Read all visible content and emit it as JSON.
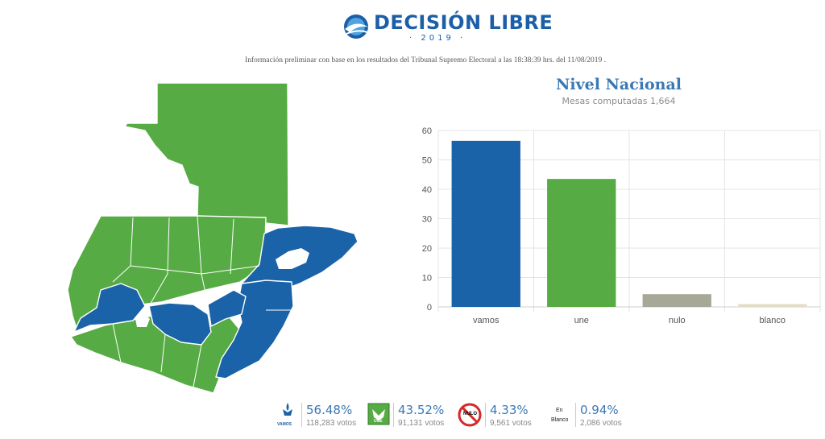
{
  "header": {
    "logo_text": "DECISIÓN LIBRE",
    "logo_year": "· 2019 ·",
    "disclaimer": "Información preliminar con base en los resultados del Tribunal Supremo Electoral a las 18:38:39 hrs. del 11/08/2019 ."
  },
  "map": {
    "region_colors": {
      "vamos": "#1a63a8",
      "une": "#57ab44"
    }
  },
  "summary": {
    "title": "Nivel Nacional",
    "subtitle": "Mesas computadas 1,664"
  },
  "chart_data": {
    "type": "bar",
    "title": "",
    "xlabel": "",
    "ylabel": "",
    "categories": [
      "vamos",
      "une",
      "nulo",
      "blanco"
    ],
    "values": [
      56.48,
      43.52,
      4.33,
      0.94
    ],
    "colors": [
      "#1a63a8",
      "#57ab44",
      "#a8a898",
      "#e3dcc6"
    ],
    "ylim": [
      0,
      60
    ],
    "yticks": [
      0,
      10,
      20,
      30,
      40,
      50,
      60
    ],
    "grid": true
  },
  "candidates": [
    {
      "id": "vamos",
      "logo_label": "VAMOS",
      "percent": "56.48%",
      "votes": "118,283 votos",
      "color": "#1a63a8"
    },
    {
      "id": "une",
      "logo_label": "UNE",
      "percent": "43.52%",
      "votes": "91,131 votos",
      "color": "#57ab44"
    },
    {
      "id": "nulo",
      "logo_label": "NULO",
      "percent": "4.33%",
      "votes": "9,561 votos",
      "color": "#d62828"
    },
    {
      "id": "blanco",
      "logo_label_top": "En",
      "logo_label_bottom": "Blanco",
      "percent": "0.94%",
      "votes": "2,086 votos",
      "color": "#222222"
    }
  ]
}
